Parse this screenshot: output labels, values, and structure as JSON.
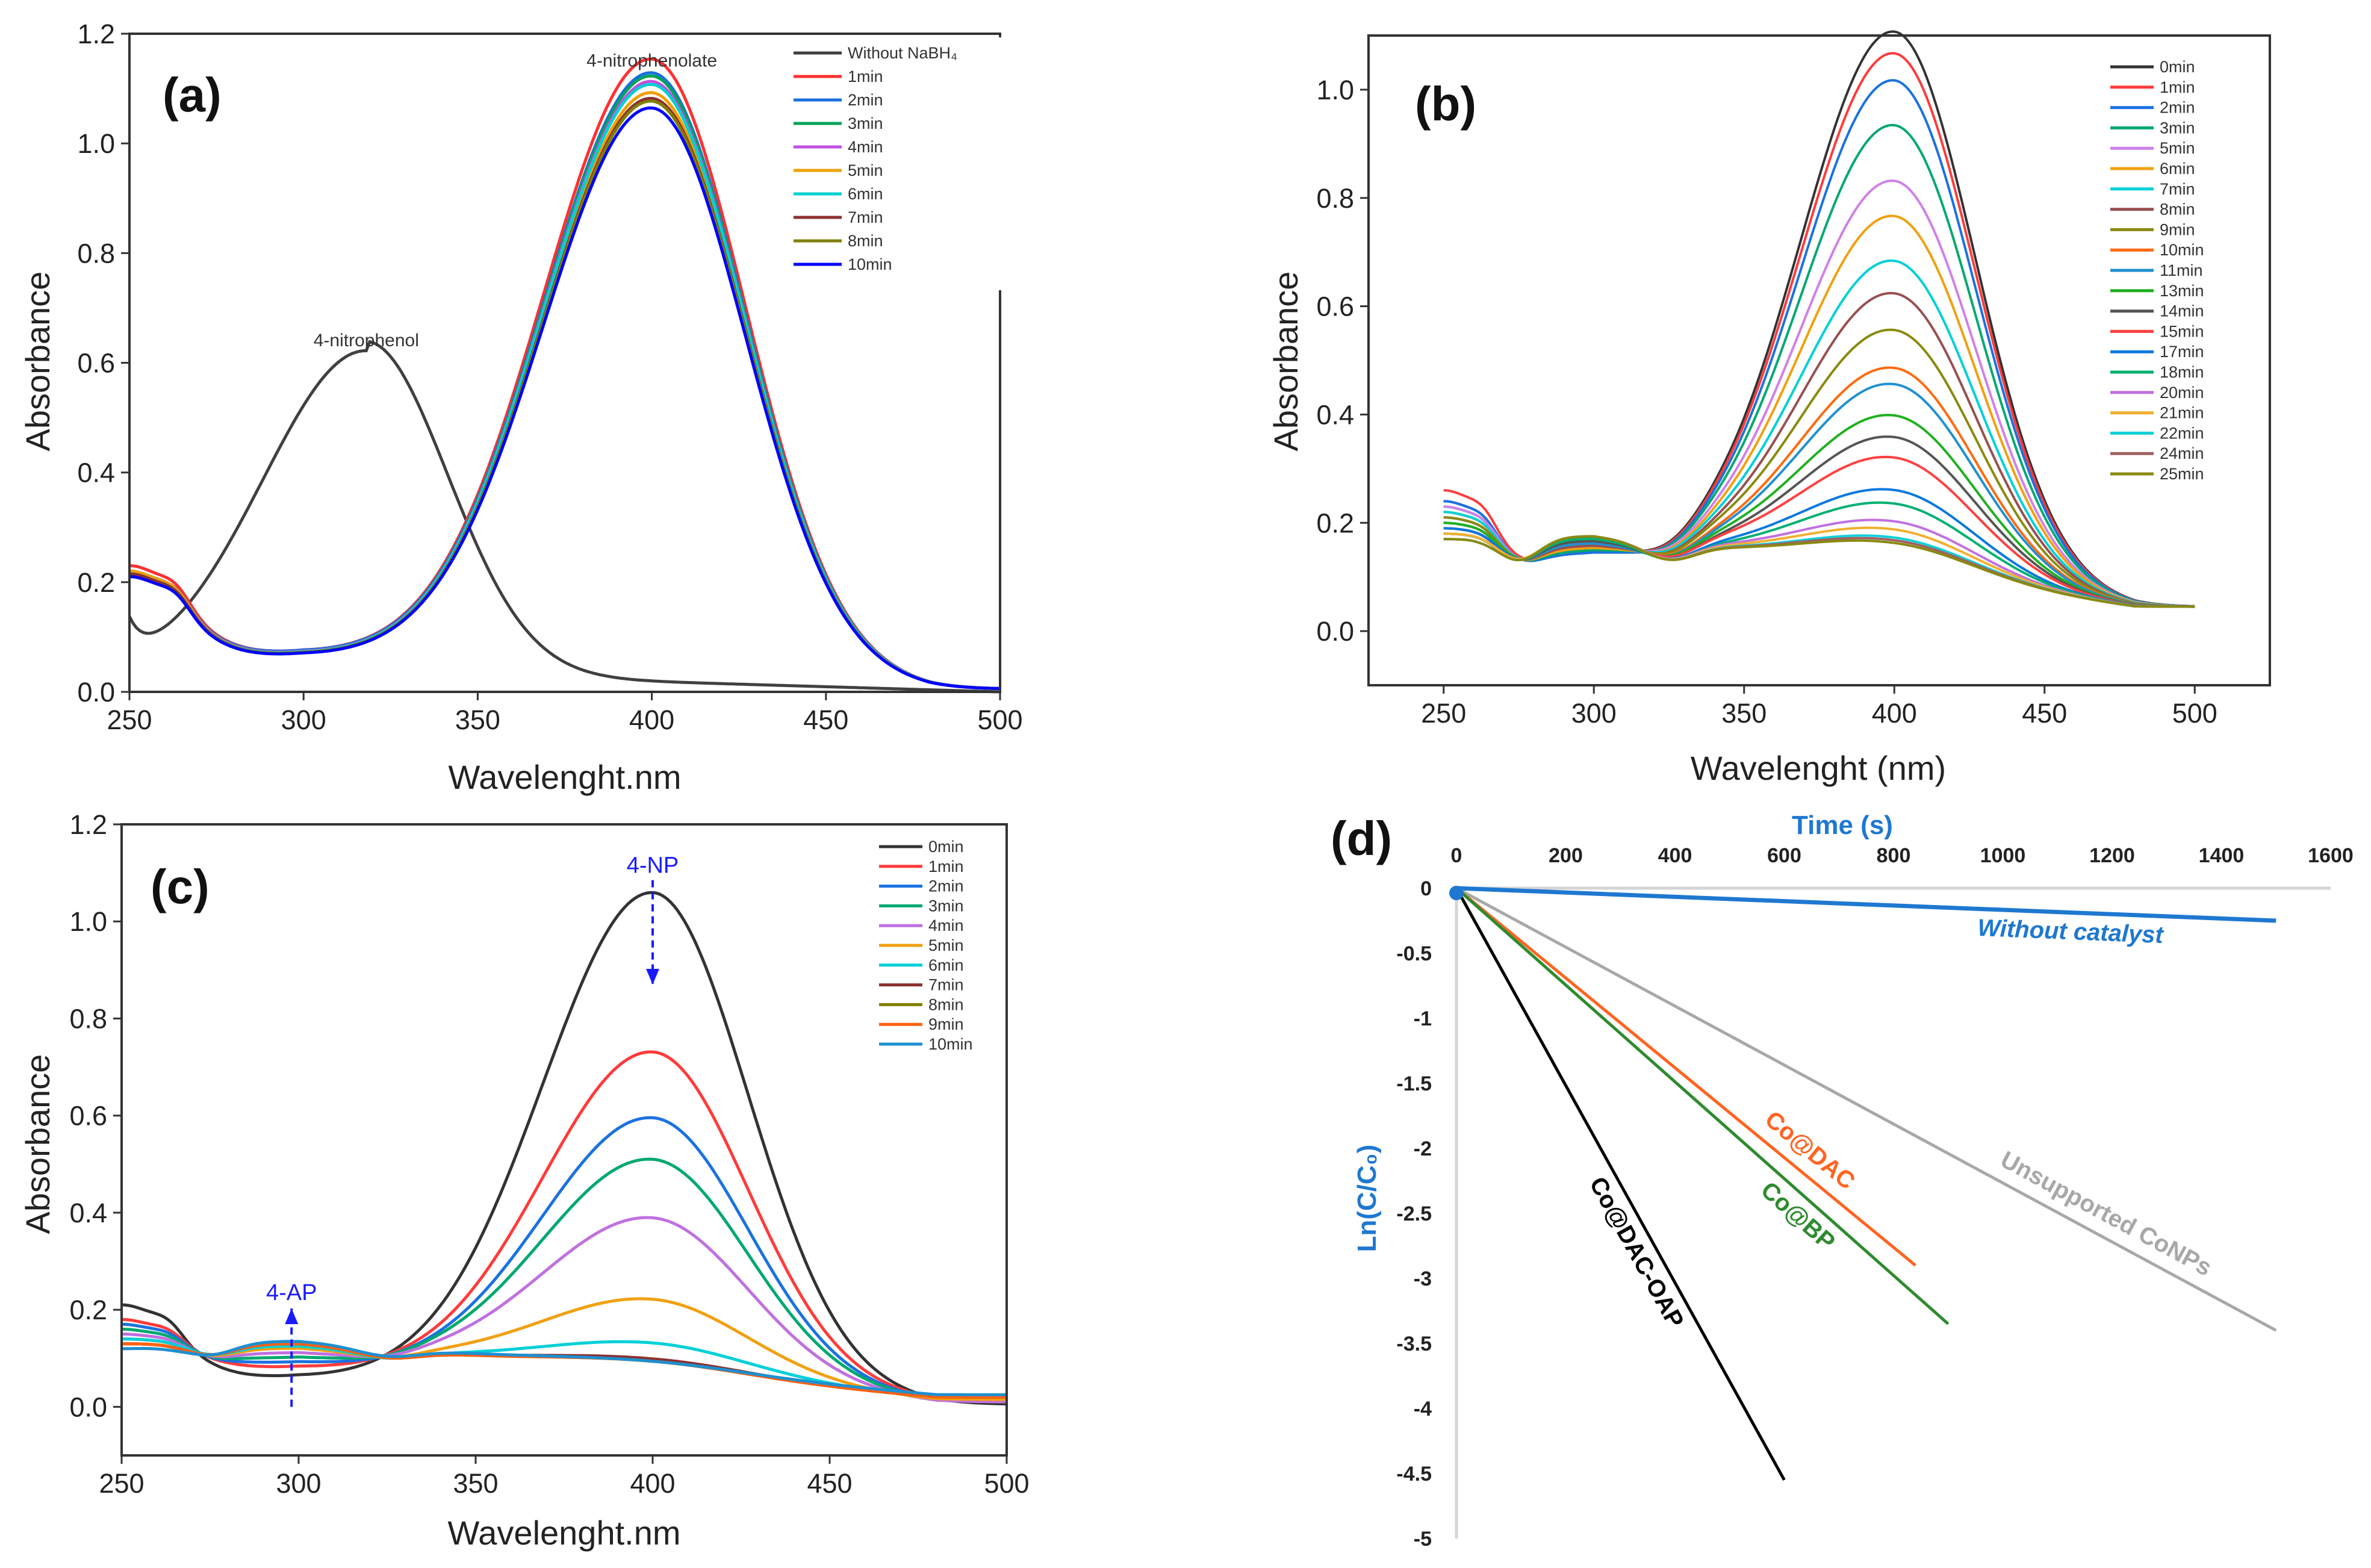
{
  "chart_data": [
    {
      "type": "line",
      "panel_label": "(a)",
      "xlabel": "Wavelenght.nm",
      "ylabel": "Absorbance",
      "xlim": [
        250,
        500
      ],
      "ylim": [
        0,
        1.2
      ],
      "xticks": [
        250,
        300,
        350,
        400,
        450,
        500
      ],
      "yticks": [
        0.0,
        0.2,
        0.4,
        0.6,
        0.8,
        1.0,
        1.2
      ],
      "annotations": [
        {
          "text": "4-nitrophenolate",
          "x": 400,
          "y": 1.14
        },
        {
          "text": "4-nitrophenol",
          "x": 318,
          "y": 0.63
        }
      ],
      "legend_position": "top-right",
      "series": [
        {
          "name": "Without NaBH₄",
          "color": "#404040",
          "kind": "nitrophenol",
          "peak_wavelength": 318,
          "peak_abs": 0.605,
          "abs_250": 0.1
        },
        {
          "name": "1min",
          "color": "#FF3030",
          "peak_abs": 1.12,
          "abs_250": 0.23,
          "abs_300": 0.07,
          "abs_500": 0.005
        },
        {
          "name": "2min",
          "color": "#1A6FE0",
          "peak_abs": 1.095,
          "abs_250": 0.22,
          "abs_300": 0.07,
          "abs_500": 0.005
        },
        {
          "name": "3min",
          "color": "#00A35A",
          "peak_abs": 1.09,
          "abs_250": 0.22,
          "abs_300": 0.068,
          "abs_500": 0.005
        },
        {
          "name": "4min",
          "color": "#C050E0",
          "peak_abs": 1.08,
          "abs_250": 0.22,
          "abs_300": 0.068,
          "abs_500": 0.005
        },
        {
          "name": "5min",
          "color": "#F0A000",
          "peak_abs": 1.06,
          "abs_250": 0.22,
          "abs_300": 0.067,
          "abs_500": 0.005
        },
        {
          "name": "6min",
          "color": "#00D0D0",
          "peak_abs": 1.075,
          "abs_250": 0.215,
          "abs_300": 0.067,
          "abs_500": 0.005
        },
        {
          "name": "7min",
          "color": "#8B3030",
          "peak_abs": 1.05,
          "abs_250": 0.215,
          "abs_300": 0.066,
          "abs_500": 0.005
        },
        {
          "name": "8min",
          "color": "#808000",
          "peak_abs": 1.045,
          "abs_250": 0.21,
          "abs_300": 0.066,
          "abs_500": 0.005
        },
        {
          "name": "10min",
          "color": "#0000FF",
          "peak_abs": 1.033,
          "abs_250": 0.21,
          "abs_300": 0.065,
          "abs_500": 0.005
        }
      ]
    },
    {
      "type": "line",
      "panel_label": "(b)",
      "xlabel": "Wavelenght (nm)",
      "ylabel": "Absorbance",
      "xlim": [
        225,
        525
      ],
      "ylim": [
        -0.1,
        1.1
      ],
      "xticks": [
        250,
        300,
        350,
        400,
        450,
        500
      ],
      "yticks": [
        0.0,
        0.2,
        0.4,
        0.6,
        0.8,
        1.0
      ],
      "legend_position": "top-right",
      "series": [
        {
          "name": "0min",
          "color": "#333333",
          "peak_abs": 1.02,
          "abs_250": 0.24,
          "abs_300": 0.14,
          "abs_500": 0.045
        },
        {
          "name": "1min",
          "color": "#FF3B3B",
          "peak_abs": 0.98,
          "abs_250": 0.26,
          "abs_300": 0.14,
          "abs_500": 0.045
        },
        {
          "name": "2min",
          "color": "#1A72E0",
          "peak_abs": 0.93,
          "abs_250": 0.24,
          "abs_300": 0.14,
          "abs_500": 0.045
        },
        {
          "name": "3min",
          "color": "#00A870",
          "peak_abs": 0.845,
          "abs_250": 0.23,
          "abs_300": 0.145,
          "abs_500": 0.045
        },
        {
          "name": "5min",
          "color": "#D080E8",
          "peak_abs": 0.74,
          "abs_250": 0.23,
          "abs_300": 0.15,
          "abs_500": 0.045
        },
        {
          "name": "6min",
          "color": "#F0A010",
          "peak_abs": 0.675,
          "abs_250": 0.22,
          "abs_300": 0.15,
          "abs_500": 0.045
        },
        {
          "name": "7min",
          "color": "#00D0D8",
          "peak_abs": 0.59,
          "abs_250": 0.22,
          "abs_300": 0.155,
          "abs_500": 0.045
        },
        {
          "name": "8min",
          "color": "#985050",
          "peak_abs": 0.53,
          "abs_250": 0.21,
          "abs_300": 0.155,
          "abs_500": 0.045
        },
        {
          "name": "9min",
          "color": "#8A8A10",
          "peak_abs": 0.46,
          "abs_250": 0.21,
          "abs_300": 0.16,
          "abs_500": 0.045
        },
        {
          "name": "10min",
          "color": "#FF6A10",
          "peak_abs": 0.39,
          "abs_250": 0.2,
          "abs_300": 0.16,
          "abs_500": 0.045
        },
        {
          "name": "11min",
          "color": "#2090D0",
          "peak_abs": 0.36,
          "abs_250": 0.2,
          "abs_300": 0.16,
          "abs_500": 0.045
        },
        {
          "name": "13min",
          "color": "#20B020",
          "peak_abs": 0.3,
          "abs_250": 0.2,
          "abs_300": 0.165,
          "abs_500": 0.045
        },
        {
          "name": "14min",
          "color": "#555555",
          "peak_abs": 0.26,
          "abs_250": 0.19,
          "abs_300": 0.165,
          "abs_500": 0.045
        },
        {
          "name": "15min",
          "color": "#FF4040",
          "peak_abs": 0.22,
          "abs_250": 0.19,
          "abs_300": 0.17,
          "abs_500": 0.045
        },
        {
          "name": "17min",
          "color": "#0A78E0",
          "peak_abs": 0.16,
          "abs_250": 0.19,
          "abs_300": 0.17,
          "abs_500": 0.045
        },
        {
          "name": "18min",
          "color": "#00B070",
          "peak_abs": 0.135,
          "abs_250": 0.18,
          "abs_300": 0.17,
          "abs_500": 0.045
        },
        {
          "name": "20min",
          "color": "#C070E0",
          "peak_abs": 0.1,
          "abs_250": 0.18,
          "abs_300": 0.175,
          "abs_500": 0.045
        },
        {
          "name": "21min",
          "color": "#F0B030",
          "peak_abs": 0.085,
          "abs_250": 0.18,
          "abs_300": 0.175,
          "abs_500": 0.045
        },
        {
          "name": "22min",
          "color": "#10D0D8",
          "peak_abs": 0.07,
          "abs_250": 0.17,
          "abs_300": 0.175,
          "abs_500": 0.045
        },
        {
          "name": "24min",
          "color": "#A06060",
          "peak_abs": 0.065,
          "abs_250": 0.17,
          "abs_300": 0.175,
          "abs_500": 0.045
        },
        {
          "name": "25min",
          "color": "#8A8A10",
          "peak_abs": 0.06,
          "abs_250": 0.17,
          "abs_300": 0.175,
          "abs_500": 0.045
        }
      ]
    },
    {
      "type": "line",
      "panel_label": "(c)",
      "xlabel": "Wavelenght.nm",
      "ylabel": "Absorbance",
      "xlim": [
        250,
        500
      ],
      "ylim": [
        -0.1,
        1.2
      ],
      "xticks": [
        250,
        300,
        350,
        400,
        450,
        500
      ],
      "yticks": [
        0.0,
        0.2,
        0.4,
        0.6,
        0.8,
        1.0,
        1.2
      ],
      "annotations": [
        {
          "text": "4-NP",
          "x": 400,
          "y": 1.1,
          "arrow": "down",
          "arrow_to": 0.87
        },
        {
          "text": "4-AP",
          "x": 298,
          "y": 0.22,
          "arrow": "up",
          "arrow_to": 0.0
        }
      ],
      "legend_position": "top-right",
      "series": [
        {
          "name": "0min",
          "color": "#333333",
          "peak_abs": 1.03,
          "abs_250": 0.21,
          "abs_300": 0.06,
          "abs_500": 0.005
        },
        {
          "name": "1min",
          "color": "#FF3B3B",
          "peak_abs": 0.69,
          "abs_250": 0.18,
          "abs_300": 0.08,
          "abs_500": 0.01
        },
        {
          "name": "2min",
          "color": "#1A72E0",
          "peak_abs": 0.55,
          "abs_250": 0.17,
          "abs_300": 0.09,
          "abs_500": 0.01
        },
        {
          "name": "3min",
          "color": "#00A870",
          "peak_abs": 0.46,
          "abs_250": 0.16,
          "abs_300": 0.1,
          "abs_500": 0.01
        },
        {
          "name": "4min",
          "color": "#C070E0",
          "peak_abs": 0.335,
          "abs_250": 0.15,
          "abs_300": 0.11,
          "abs_500": 0.01
        },
        {
          "name": "5min",
          "color": "#F0A010",
          "peak_abs": 0.16,
          "abs_250": 0.14,
          "abs_300": 0.12,
          "abs_500": 0.015
        },
        {
          "name": "6min",
          "color": "#00D0D8",
          "peak_abs": 0.065,
          "abs_250": 0.14,
          "abs_300": 0.125,
          "abs_500": 0.02
        },
        {
          "name": "7min",
          "color": "#8B3030",
          "peak_abs": 0.03,
          "abs_250": 0.13,
          "abs_300": 0.13,
          "abs_500": 0.02
        },
        {
          "name": "8min",
          "color": "#808000",
          "peak_abs": 0.025,
          "abs_250": 0.13,
          "abs_300": 0.13,
          "abs_500": 0.02
        },
        {
          "name": "9min",
          "color": "#FF6010",
          "peak_abs": 0.025,
          "abs_250": 0.13,
          "abs_300": 0.13,
          "abs_500": 0.02
        },
        {
          "name": "10min",
          "color": "#1E90D0",
          "peak_abs": 0.02,
          "abs_250": 0.12,
          "abs_300": 0.135,
          "abs_500": 0.025
        }
      ]
    },
    {
      "type": "line",
      "panel_label": "(d)",
      "xlabel": "Time (s)",
      "ylabel": "Ln(C/C₀)",
      "xlim": [
        0,
        1600
      ],
      "ylim": [
        -5,
        0
      ],
      "xticks": [
        0,
        200,
        400,
        600,
        800,
        1000,
        1200,
        1400,
        1600
      ],
      "yticks": [
        0,
        -0.5,
        -1,
        -1.5,
        -2,
        -2.5,
        -3,
        -3.5,
        -4,
        -4.5,
        -5
      ],
      "ytick_labels": [
        "0",
        "-0.5",
        "-1",
        "-1.5",
        "-2",
        "-2.5",
        "-3",
        "-3.5",
        "-4",
        "-4.5",
        "-5"
      ],
      "axis_color": "#1E78D0",
      "series": [
        {
          "name": "Without catalyst",
          "color": "#1E78D0",
          "x": [
            0,
            1500
          ],
          "y": [
            0,
            -0.25
          ],
          "label_at": 0.75,
          "label_offset": 1,
          "italic": true
        },
        {
          "name": "Unsupported CoNPs",
          "color": "#A8A8A8",
          "x": [
            0,
            1500
          ],
          "y": [
            0,
            -3.4
          ],
          "label_at": 0.78,
          "label_offset": -1,
          "italic": false
        },
        {
          "name": "Co@DAC",
          "color": "#FF6420",
          "x": [
            0,
            840
          ],
          "y": [
            0,
            -2.9
          ],
          "label_at": 0.74,
          "label_offset": -1,
          "italic": false
        },
        {
          "name": "Co@BP",
          "color": "#2E8B2E",
          "x": [
            0,
            900
          ],
          "y": [
            0,
            -3.35
          ],
          "label_at": 0.72,
          "label_offset": 1,
          "italic": false
        },
        {
          "name": "Co@DAC-OAP",
          "color": "#000000",
          "x": [
            0,
            600
          ],
          "y": [
            0,
            -4.55
          ],
          "label_at": 0.6,
          "label_offset": 1,
          "italic": false
        }
      ]
    }
  ]
}
